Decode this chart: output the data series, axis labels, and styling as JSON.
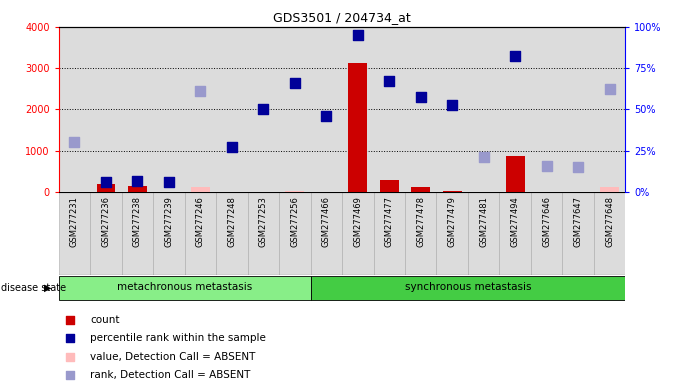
{
  "title": "GDS3501 / 204734_at",
  "samples": [
    "GSM277231",
    "GSM277236",
    "GSM277238",
    "GSM277239",
    "GSM277246",
    "GSM277248",
    "GSM277253",
    "GSM277256",
    "GSM277466",
    "GSM277469",
    "GSM277477",
    "GSM277478",
    "GSM277479",
    "GSM277481",
    "GSM277494",
    "GSM277646",
    "GSM277647",
    "GSM277648"
  ],
  "groups": [
    {
      "label": "metachronous metastasis",
      "start": 0,
      "end": 8
    },
    {
      "label": "synchronous metastasis",
      "start": 8,
      "end": 18
    }
  ],
  "count_values": [
    0,
    200,
    150,
    0,
    130,
    0,
    0,
    270,
    0,
    3130,
    280,
    110,
    30,
    0,
    860,
    0,
    0,
    130
  ],
  "value_absent_flag": [
    false,
    false,
    false,
    false,
    true,
    false,
    false,
    true,
    false,
    false,
    false,
    false,
    false,
    false,
    false,
    false,
    false,
    true
  ],
  "value_absent_vals": [
    0,
    0,
    0,
    0,
    130,
    0,
    0,
    30,
    0,
    0,
    0,
    0,
    0,
    0,
    0,
    0,
    0,
    130
  ],
  "rank_values": [
    1200,
    250,
    270,
    250,
    2450,
    1100,
    2000,
    2650,
    1850,
    3800,
    2700,
    2300,
    2100,
    850,
    3300,
    620,
    600,
    2500
  ],
  "rank_absent_flag": [
    true,
    false,
    false,
    false,
    true,
    false,
    false,
    false,
    false,
    false,
    false,
    false,
    false,
    true,
    false,
    true,
    true,
    true
  ],
  "ylim": [
    0,
    4000
  ],
  "yticks": [
    0,
    1000,
    2000,
    3000,
    4000
  ],
  "ytick_labels_left": [
    "0",
    "1000",
    "2000",
    "3000",
    "4000"
  ],
  "ytick_labels_right": [
    "0%",
    "25%",
    "50%",
    "75%",
    "100%"
  ],
  "bg_color": "#dcdcdc",
  "bar_color_present": "#cc0000",
  "bar_color_absent": "#ffbbbb",
  "dot_color_present": "#000099",
  "dot_color_absent": "#9999cc",
  "group_color_meta": "#88ee88",
  "group_color_sync": "#44cc44",
  "legend_items": [
    {
      "label": "count",
      "color": "#cc0000"
    },
    {
      "label": "percentile rank within the sample",
      "color": "#000099"
    },
    {
      "label": "value, Detection Call = ABSENT",
      "color": "#ffbbbb"
    },
    {
      "label": "rank, Detection Call = ABSENT",
      "color": "#9999cc"
    }
  ]
}
